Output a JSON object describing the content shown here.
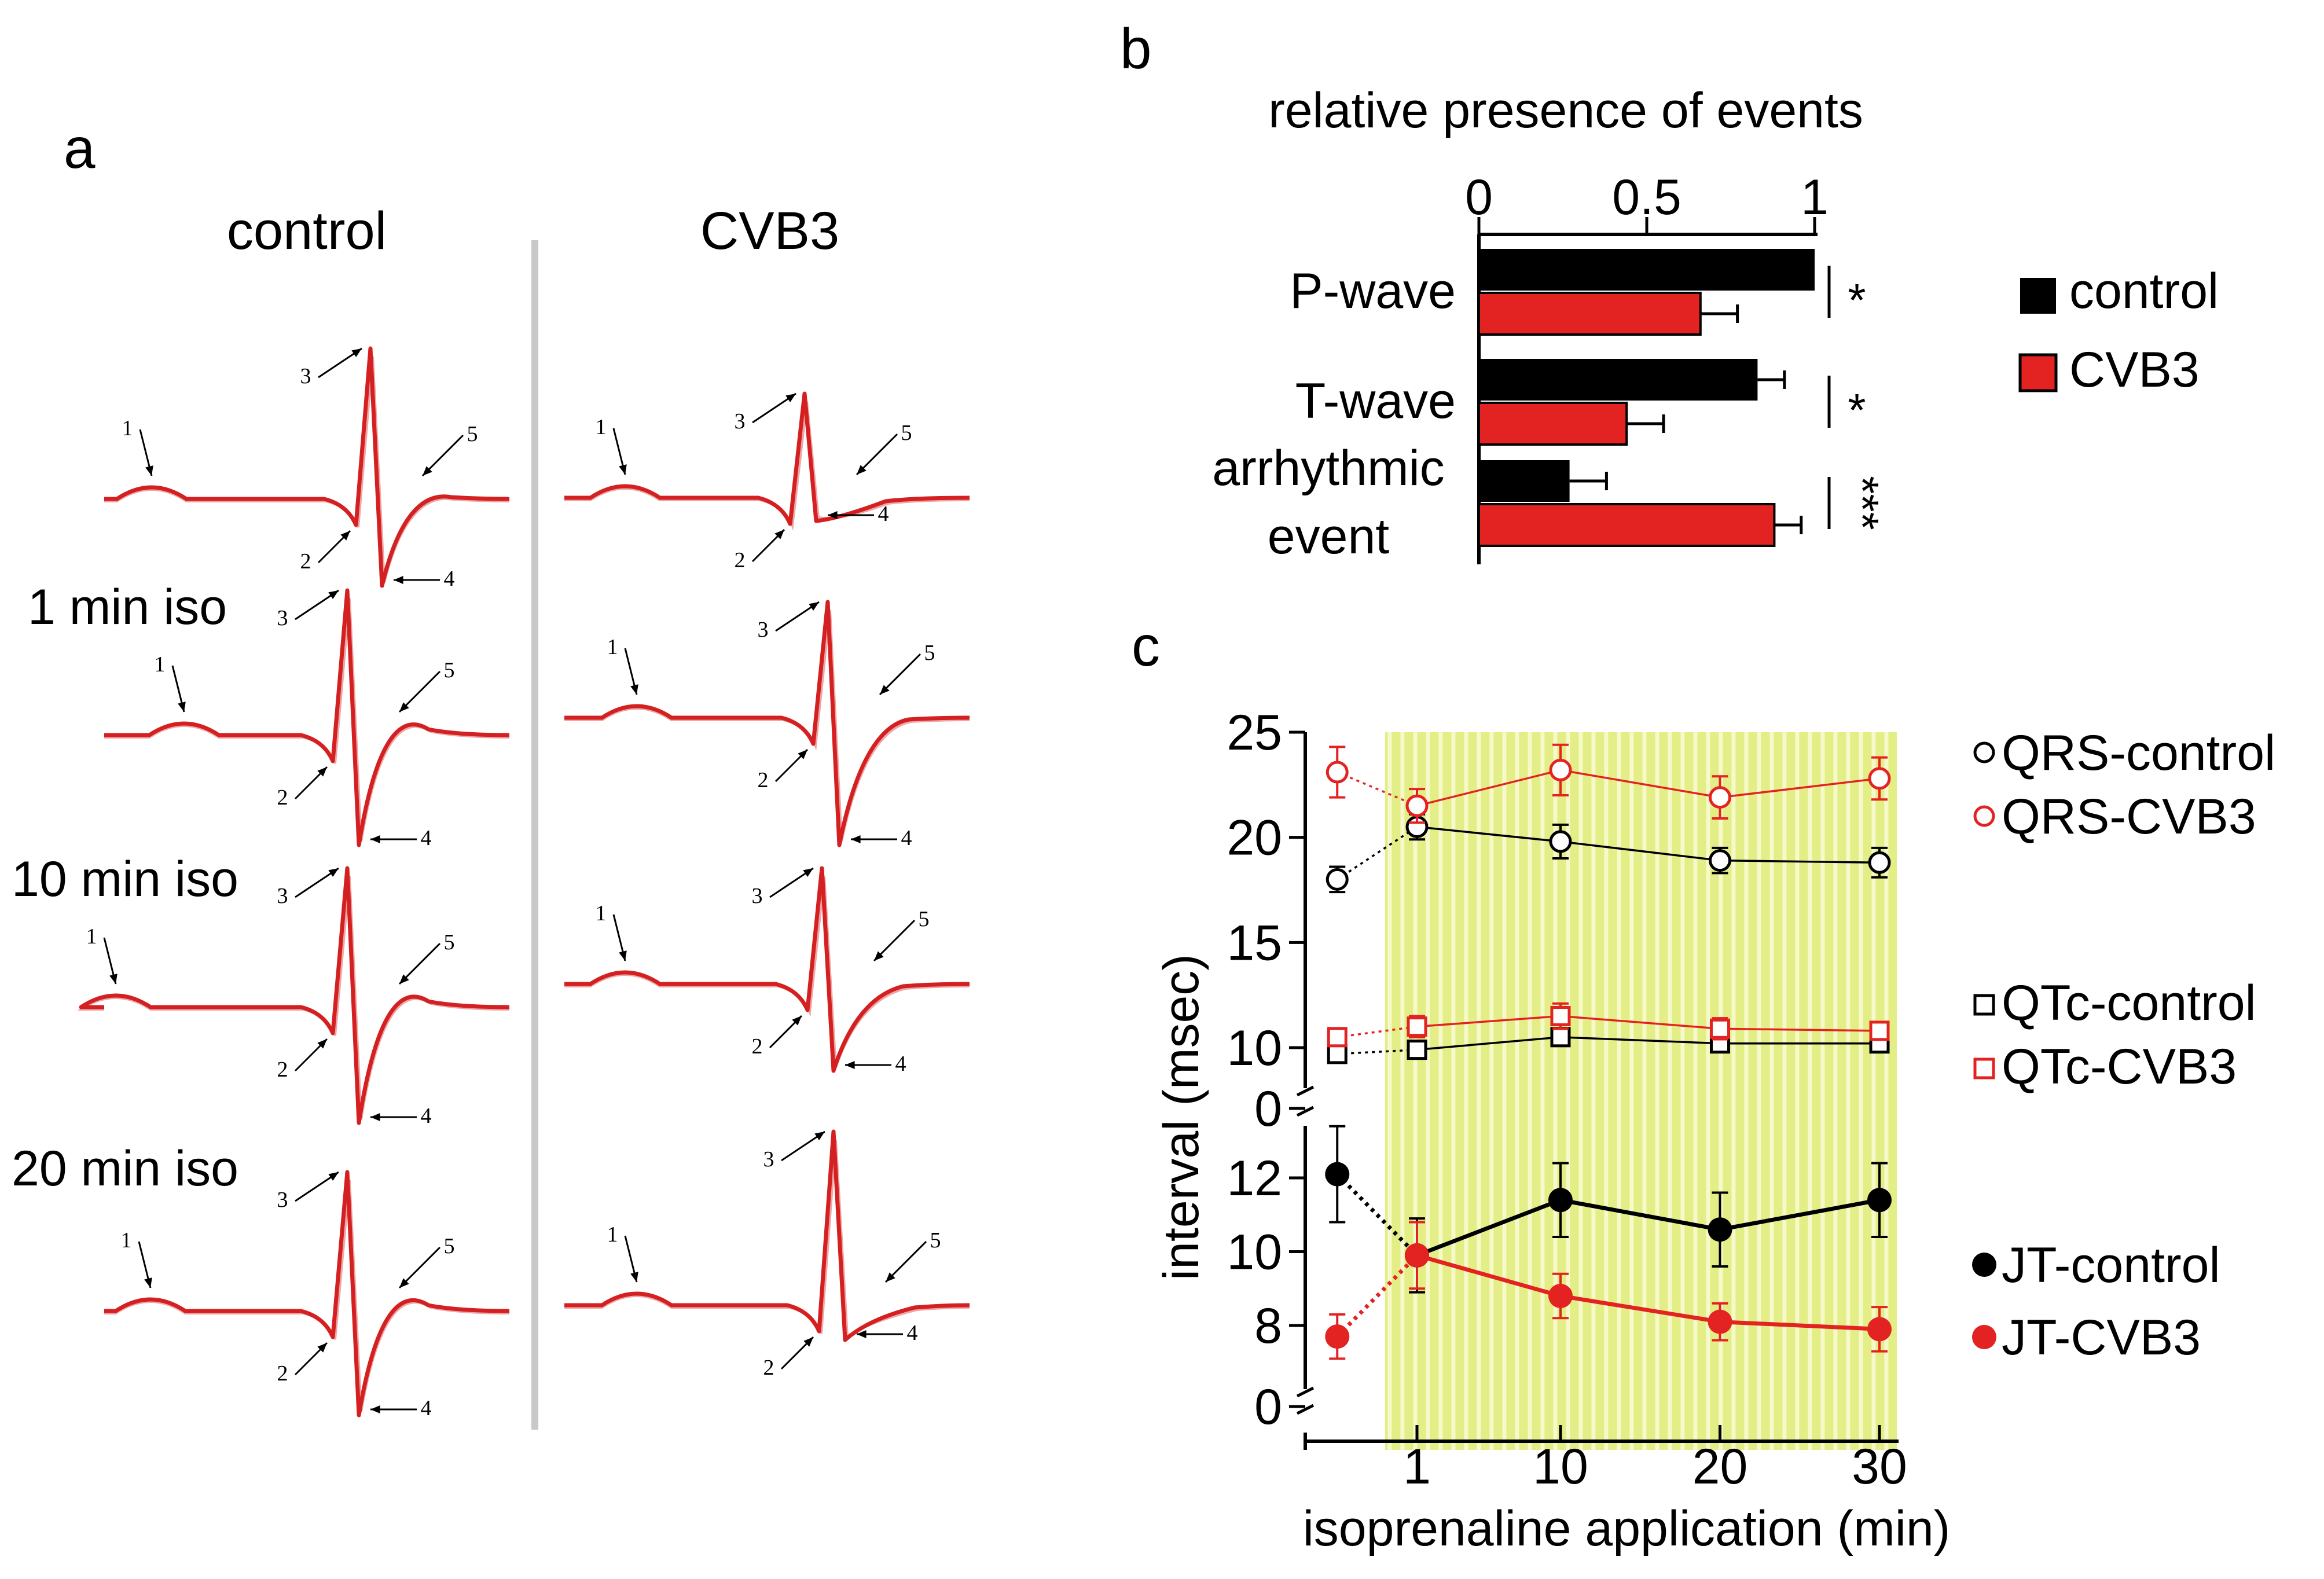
{
  "panels": {
    "a": {
      "letter": "a"
    },
    "b": {
      "letter": "b"
    },
    "c": {
      "letter": "c"
    }
  },
  "chart_data": [
    {
      "panel": "a",
      "type": "other",
      "column_titles": [
        "control",
        "CVB3"
      ],
      "row_labels": [
        "",
        "1 min iso",
        "10 min iso",
        "20 min iso"
      ],
      "annotation_numbers": [
        "1",
        "2",
        "3",
        "4",
        "5"
      ],
      "colors": {
        "trace": "#d42020",
        "divider": "#c8c8c8"
      }
    },
    {
      "panel": "b",
      "type": "bar",
      "title": "relative presence of events",
      "orientation": "horizontal",
      "categories": [
        "P-wave",
        "T-wave",
        "arrhythmic event"
      ],
      "category_lines": [
        [
          "P-wave"
        ],
        [
          "T-wave"
        ],
        [
          "arrhythmic",
          "event"
        ]
      ],
      "series": [
        {
          "name": "control",
          "values": [
            1.0,
            0.83,
            0.27
          ],
          "errors": [
            0.0,
            0.08,
            0.11
          ],
          "color": "#000000"
        },
        {
          "name": "CVB3",
          "values": [
            0.66,
            0.44,
            0.88
          ],
          "errors": [
            0.11,
            0.11,
            0.08
          ],
          "color": "#e32222"
        }
      ],
      "significance": [
        "*",
        "*",
        "***"
      ],
      "xlim": [
        0,
        1
      ],
      "xticks": [
        "0",
        "0.5",
        "1"
      ],
      "legend_position": "right"
    },
    {
      "panel": "c",
      "type": "line",
      "xlabel": "isoprenaline application (min)",
      "ylabel": "interval (msec)",
      "xticks": [
        "1",
        "10",
        "20",
        "30"
      ],
      "x": [
        -4,
        1,
        10,
        20,
        30
      ],
      "x_note": "first point is the pre-isoprenaline baseline, drawn left of the 1 min tick and joined by a dotted segment",
      "shaded_region": {
        "from": -1,
        "to": 30,
        "color": "#e4ee86"
      },
      "top_axis": {
        "yticks": [
          "10",
          "15",
          "20",
          "25"
        ],
        "ylim": [
          9,
          25
        ],
        "zero_label": "0",
        "broken": true
      },
      "bottom_axis": {
        "yticks": [
          "8",
          "10",
          "12"
        ],
        "ylim": [
          7,
          13.5
        ],
        "zero_label": "0",
        "broken": true
      },
      "series": [
        {
          "name": "QRS-control",
          "axis": "top",
          "marker": "open-circle",
          "color": "#000000",
          "values": [
            18.0,
            20.5,
            19.8,
            18.9,
            18.8
          ],
          "errors": [
            0.6,
            0.6,
            0.8,
            0.6,
            0.7
          ]
        },
        {
          "name": "QRS-CVB3",
          "axis": "top",
          "marker": "open-circle",
          "color": "#e32222",
          "values": [
            23.1,
            21.5,
            23.2,
            21.9,
            22.8
          ],
          "errors": [
            1.2,
            0.8,
            1.2,
            1.0,
            1.0
          ]
        },
        {
          "name": "QTc-control",
          "axis": "top",
          "marker": "open-square",
          "color": "#000000",
          "values": [
            9.7,
            9.9,
            10.5,
            10.2,
            10.2
          ],
          "errors": [
            0.2,
            0.3,
            0.3,
            0.3,
            0.3
          ]
        },
        {
          "name": "QTc-CVB3",
          "axis": "top",
          "marker": "open-square",
          "color": "#e32222",
          "values": [
            10.5,
            11.0,
            11.5,
            10.9,
            10.8
          ],
          "errors": [
            0.4,
            0.5,
            0.6,
            0.5,
            0.4
          ]
        },
        {
          "name": "JT-control",
          "axis": "bottom",
          "marker": "filled-circle",
          "color": "#000000",
          "values": [
            12.1,
            9.9,
            11.4,
            10.6,
            11.4
          ],
          "errors": [
            1.3,
            1.0,
            1.0,
            1.0,
            1.0
          ]
        },
        {
          "name": "JT-CVB3",
          "axis": "bottom",
          "marker": "filled-circle",
          "color": "#e32222",
          "values": [
            7.7,
            9.9,
            8.8,
            8.1,
            7.9
          ],
          "errors": [
            0.6,
            0.9,
            0.6,
            0.5,
            0.6
          ]
        }
      ],
      "legend_position": "right"
    }
  ]
}
